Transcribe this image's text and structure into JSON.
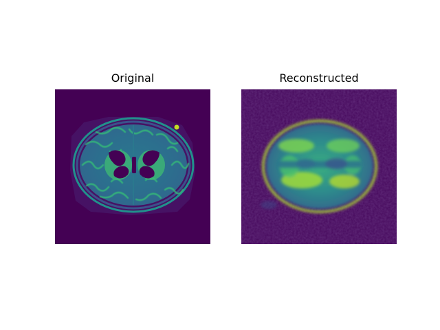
{
  "figure": {
    "panels": [
      {
        "title": "Original"
      },
      {
        "title": "Reconstructed"
      }
    ]
  },
  "colors": {
    "background": "#ffffff",
    "colormap": "viridis",
    "viridis_dark": "#440154",
    "viridis_blue": "#3b528b",
    "viridis_teal": "#21918c",
    "viridis_green": "#5ec962",
    "viridis_yellow": "#fde725"
  }
}
